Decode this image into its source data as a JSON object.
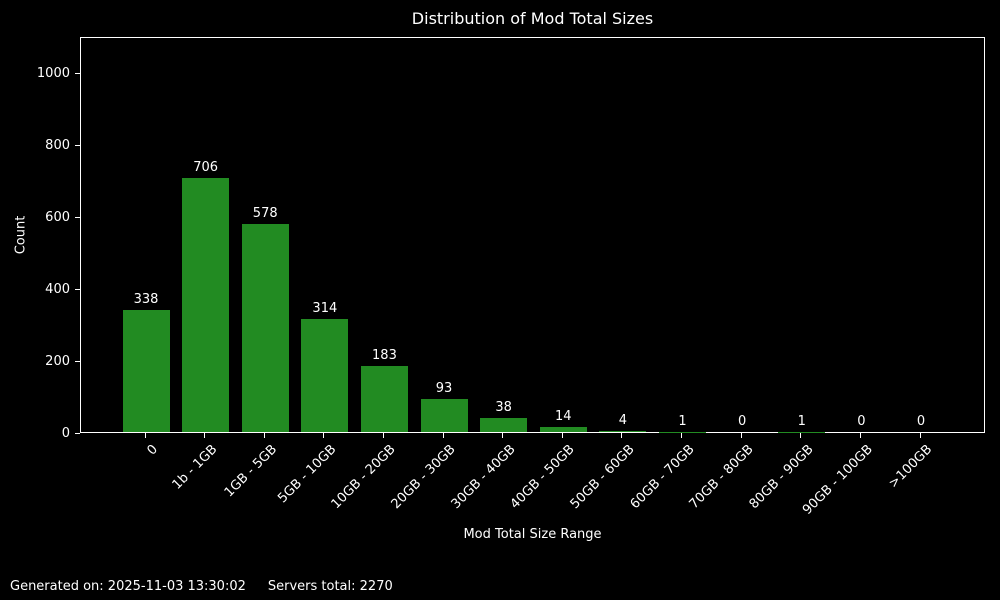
{
  "chart_data": {
    "type": "bar",
    "title": "Distribution of Mod Total Sizes",
    "xlabel": "Mod Total Size Range",
    "ylabel": "Count",
    "categories": [
      "0",
      "1b - 1GB",
      "1GB - 5GB",
      "5GB - 10GB",
      "10GB - 20GB",
      "20GB - 30GB",
      "30GB - 40GB",
      "40GB - 50GB",
      "50GB - 60GB",
      "60GB - 70GB",
      "70GB - 80GB",
      "80GB - 90GB",
      "90GB - 100GB",
      ">100GB"
    ],
    "values": [
      338,
      706,
      578,
      314,
      183,
      93,
      38,
      14,
      4,
      1,
      0,
      1,
      0,
      0
    ],
    "ylim": [
      0,
      1100
    ],
    "yticks": [
      0,
      200,
      400,
      600,
      800,
      1000
    ],
    "grid": false,
    "legend": "none",
    "colors": {
      "bar": "#228b22",
      "background": "#000000",
      "text": "#ffffff",
      "spine": "#ffffff"
    }
  },
  "footer": {
    "generated": "Generated on: 2025-11-03 13:30:02",
    "servers_total": "Servers total: 2270"
  }
}
